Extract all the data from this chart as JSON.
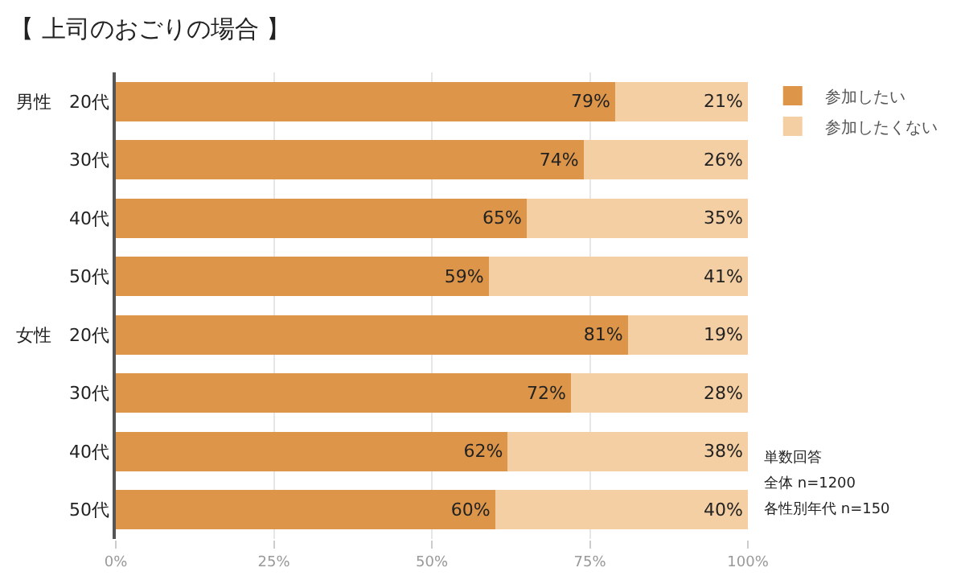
{
  "chart_data": {
    "type": "bar",
    "orientation": "horizontal",
    "stacked": true,
    "title": "【 上司のおごりの場合 】",
    "categories": [
      "男性　20代",
      "30代",
      "40代",
      "50代",
      "女性　20代",
      "30代",
      "40代",
      "50代"
    ],
    "series": [
      {
        "name": "参加したい",
        "color": "#dd9549",
        "values": [
          79,
          74,
          65,
          59,
          81,
          72,
          62,
          60
        ],
        "value_labels": [
          "79%",
          "74%",
          "65%",
          "59%",
          "81%",
          "72%",
          "62%",
          "60%"
        ]
      },
      {
        "name": "参加したくない",
        "color": "#f4cfa3",
        "values": [
          21,
          26,
          35,
          41,
          19,
          28,
          38,
          40
        ],
        "value_labels": [
          "21%",
          "26%",
          "35%",
          "41%",
          "19%",
          "28%",
          "38%",
          "40%"
        ]
      }
    ],
    "xlim": [
      0,
      100
    ],
    "xticks": [
      {
        "value": 0,
        "label": "0%"
      },
      {
        "value": 25,
        "label": "25%"
      },
      {
        "value": 50,
        "label": "50%"
      },
      {
        "value": 75,
        "label": "75%"
      },
      {
        "value": 100,
        "label": "100%"
      }
    ],
    "grid": "x",
    "legend": "top right",
    "annotations": [
      "単数回答",
      "全体 n=1200",
      "各性別年代 n=150"
    ]
  }
}
